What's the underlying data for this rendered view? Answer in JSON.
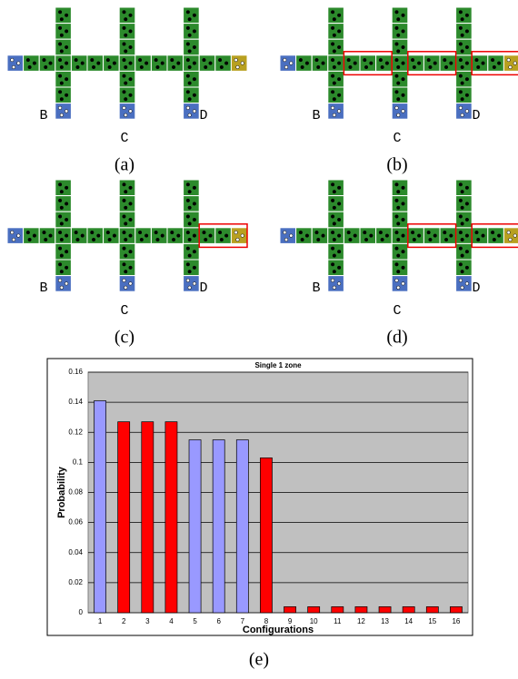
{
  "panels": [
    {
      "caption": "(a)",
      "labels": [
        "B",
        "C",
        "D"
      ]
    },
    {
      "caption": "(b)",
      "labels": [
        "B",
        "C",
        "D"
      ]
    },
    {
      "caption": "(c)",
      "labels": [
        "B",
        "C",
        "D"
      ]
    },
    {
      "caption": "(d)",
      "labels": [
        "B",
        "C",
        "D"
      ]
    }
  ],
  "chart_data": {
    "type": "bar",
    "title": "Single 1 zone",
    "x_label": "Configurations",
    "y_label": "Probability",
    "categories": [
      "1",
      "2",
      "3",
      "4",
      "5",
      "6",
      "7",
      "8",
      "9",
      "10",
      "11",
      "12",
      "13",
      "14",
      "15",
      "16"
    ],
    "values": [
      0.141,
      0.127,
      0.127,
      0.127,
      0.115,
      0.115,
      0.115,
      0.103,
      0.004,
      0.004,
      0.004,
      0.004,
      0.004,
      0.004,
      0.004,
      0.004
    ],
    "colors": [
      "#9999ff",
      "#ff0000",
      "#ff0000",
      "#ff0000",
      "#9999ff",
      "#9999ff",
      "#9999ff",
      "#ff0000",
      "#ff0000",
      "#ff0000",
      "#ff0000",
      "#ff0000",
      "#ff0000",
      "#ff0000",
      "#ff0000",
      "#ff0000"
    ],
    "ylim": [
      0,
      0.16
    ],
    "yticks": [
      0,
      0.02,
      0.04,
      0.06,
      0.08,
      0.1,
      0.12,
      0.14,
      0.16
    ],
    "grid": true,
    "caption": "(e)"
  }
}
